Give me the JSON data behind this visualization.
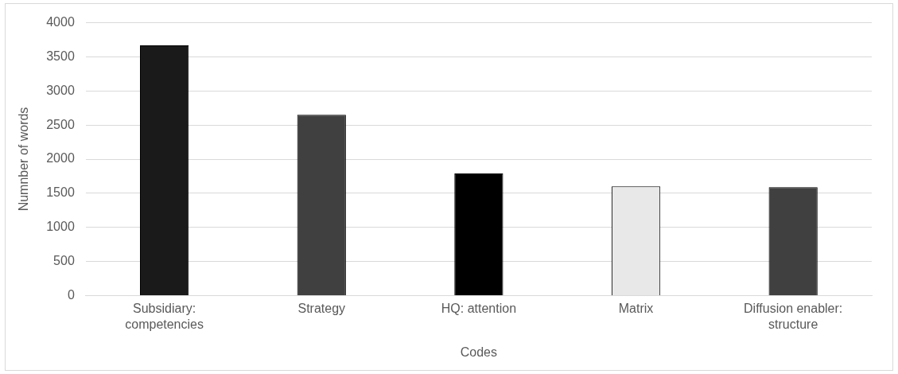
{
  "chart_data": {
    "type": "bar",
    "xlabel": "Codes",
    "ylabel": "Numnber of words",
    "categories": [
      "Subsidiary: competencies",
      "Strategy",
      "HQ: attention",
      "Matrix",
      "Diffusion enabler: structure"
    ],
    "values": [
      3670,
      2650,
      1790,
      1600,
      1590
    ],
    "colors": [
      "#1a1a1a",
      "#404040",
      "#000000",
      "#e8e8e8",
      "#404040"
    ],
    "ylim": [
      0,
      4000
    ],
    "yticks": [
      0,
      500,
      1000,
      1500,
      2000,
      2500,
      3000,
      3500,
      4000
    ],
    "grid": "y",
    "legend": false
  }
}
